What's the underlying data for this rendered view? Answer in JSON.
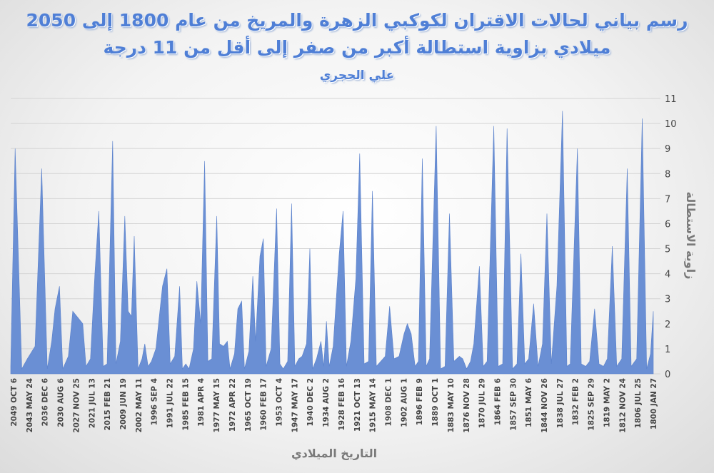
{
  "chart_data": {
    "type": "area",
    "title": "رسم بياني لحالات الاقتران لكوكبي الزهرة والمريخ من عام 1800 إلى 2050",
    "title_line2": "ميلادي بزاوية استطالة أكبر من صفر إلى أقل من 11 درجة",
    "subtitle": "علي الحجري",
    "xlabel": "التاريخ الميلادي",
    "ylabel": "زاوية الاستطالة",
    "ylim": [
      0,
      11
    ],
    "yticks": [
      0,
      1,
      2,
      3,
      4,
      5,
      6,
      7,
      8,
      9,
      10,
      11
    ],
    "grid": true,
    "y_axis_position": "right",
    "color": "#6a8fd4",
    "x_tick_labels": [
      "2049 OCT 6",
      "2043 MAY 24",
      "2036 DEC 6",
      "2030 AUG 6",
      "2027 NOV 25",
      "2021 JUL 13",
      "2015 FEB 21",
      "2009 JUN 19",
      "2002 MAY 11",
      "1996 SEP 4",
      "1991 JUL 22",
      "1985 FEB 15",
      "1981 APR 4",
      "1977 MAY 15",
      "1972 APR 22",
      "1965 OCT 19",
      "1960 FEB 17",
      "1953 OCT 4",
      "1947 MAY 17",
      "1940 DEC 2",
      "1934 AUG 2",
      "1928 FEB 16",
      "1921 OCT 13",
      "1915 MAY 14",
      "1908 DEC 1",
      "1902 AUG 1",
      "1896 FEB 9",
      "1889 OCT 1",
      "1883 MAY 10",
      "1876 NOV 28",
      "1870 JUL 29",
      "1864 FEB 6",
      "1857 SEP 30",
      "1851 MAY 6",
      "1844 NOV 26",
      "1838 JUL 27",
      "1832 FEB 2",
      "1825 SEP 29",
      "1819 MAY 2",
      "1812 NOV 24",
      "1806 JUL 25",
      "1800 JAN 27"
    ],
    "y_profile": [
      [
        0.0,
        0.3
      ],
      [
        0.8,
        9.0
      ],
      [
        2.0,
        0.2
      ],
      [
        3.0,
        0.6
      ],
      [
        4.4,
        1.1
      ],
      [
        5.6,
        8.2
      ],
      [
        6.6,
        0.2
      ],
      [
        7.4,
        1.3
      ],
      [
        8.0,
        2.6
      ],
      [
        8.8,
        3.5
      ],
      [
        9.4,
        0.2
      ],
      [
        10.4,
        0.7
      ],
      [
        11.2,
        2.5
      ],
      [
        12.3,
        2.2
      ],
      [
        13.0,
        2.0
      ],
      [
        13.6,
        0.3
      ],
      [
        14.4,
        0.6
      ],
      [
        15.2,
        4.0
      ],
      [
        15.9,
        6.5
      ],
      [
        16.7,
        0.3
      ],
      [
        17.4,
        0.4
      ],
      [
        18.4,
        9.3
      ],
      [
        19.0,
        0.4
      ],
      [
        19.8,
        1.3
      ],
      [
        20.6,
        6.3
      ],
      [
        21.2,
        2.5
      ],
      [
        21.8,
        2.3
      ],
      [
        22.3,
        5.5
      ],
      [
        23.0,
        0.2
      ],
      [
        23.7,
        0.6
      ],
      [
        24.2,
        1.2
      ],
      [
        24.8,
        0.3
      ],
      [
        25.4,
        0.5
      ],
      [
        26.2,
        1.0
      ],
      [
        27.4,
        3.5
      ],
      [
        28.2,
        4.2
      ],
      [
        28.8,
        0.4
      ],
      [
        29.6,
        0.7
      ],
      [
        30.5,
        3.5
      ],
      [
        31.0,
        0.2
      ],
      [
        31.6,
        0.4
      ],
      [
        32.2,
        0.2
      ],
      [
        33.0,
        1.0
      ],
      [
        33.6,
        3.7
      ],
      [
        34.3,
        2.0
      ],
      [
        35.0,
        8.5
      ],
      [
        35.6,
        0.5
      ],
      [
        36.3,
        0.6
      ],
      [
        37.2,
        6.3
      ],
      [
        37.7,
        1.2
      ],
      [
        38.4,
        1.1
      ],
      [
        39.1,
        1.3
      ],
      [
        39.6,
        0.2
      ],
      [
        40.4,
        0.8
      ],
      [
        41.0,
        2.6
      ],
      [
        41.7,
        2.9
      ],
      [
        42.2,
        0.2
      ],
      [
        43.0,
        0.9
      ],
      [
        43.7,
        3.9
      ],
      [
        44.2,
        1.3
      ],
      [
        45.0,
        4.7
      ],
      [
        45.6,
        5.4
      ],
      [
        46.1,
        0.3
      ],
      [
        47.0,
        1.0
      ],
      [
        48.0,
        6.6
      ],
      [
        48.6,
        0.4
      ],
      [
        49.2,
        0.2
      ],
      [
        50.0,
        0.5
      ],
      [
        50.7,
        6.8
      ],
      [
        51.3,
        0.3
      ],
      [
        52.0,
        0.6
      ],
      [
        52.6,
        0.7
      ],
      [
        53.4,
        1.2
      ],
      [
        54.0,
        5.0
      ],
      [
        54.5,
        0.2
      ],
      [
        55.2,
        0.6
      ],
      [
        56.0,
        1.3
      ],
      [
        56.5,
        0.3
      ],
      [
        57.0,
        2.1
      ],
      [
        57.5,
        0.3
      ],
      [
        58.2,
        1.1
      ],
      [
        59.3,
        4.8
      ],
      [
        60.0,
        6.5
      ],
      [
        60.6,
        0.3
      ],
      [
        61.4,
        1.3
      ],
      [
        62.3,
        3.8
      ],
      [
        63.0,
        8.8
      ],
      [
        63.8,
        0.4
      ],
      [
        64.6,
        0.5
      ],
      [
        65.3,
        7.3
      ],
      [
        66.0,
        0.3
      ],
      [
        66.8,
        0.5
      ],
      [
        67.6,
        0.7
      ],
      [
        68.4,
        2.7
      ],
      [
        69.2,
        0.6
      ],
      [
        70.1,
        0.7
      ],
      [
        71.0,
        1.6
      ],
      [
        71.6,
        2.0
      ],
      [
        72.3,
        1.6
      ],
      [
        73.0,
        0.3
      ],
      [
        73.6,
        0.5
      ],
      [
        74.3,
        8.6
      ],
      [
        75.0,
        0.3
      ],
      [
        75.6,
        0.6
      ],
      [
        76.8,
        9.9
      ],
      [
        77.6,
        0.2
      ],
      [
        78.4,
        0.3
      ],
      [
        79.2,
        6.4
      ],
      [
        80.0,
        0.5
      ],
      [
        81.0,
        0.7
      ],
      [
        81.6,
        0.6
      ],
      [
        82.3,
        0.2
      ],
      [
        83.0,
        0.5
      ],
      [
        83.6,
        1.2
      ],
      [
        84.6,
        4.3
      ],
      [
        85.3,
        0.3
      ],
      [
        86.0,
        0.5
      ],
      [
        87.2,
        9.9
      ],
      [
        88.0,
        0.3
      ],
      [
        88.8,
        0.4
      ],
      [
        89.6,
        9.8
      ],
      [
        90.6,
        0.2
      ],
      [
        91.4,
        0.4
      ],
      [
        92.1,
        4.8
      ],
      [
        92.8,
        0.4
      ],
      [
        93.5,
        0.6
      ],
      [
        94.4,
        2.8
      ],
      [
        95.2,
        0.3
      ],
      [
        96.0,
        1.2
      ],
      [
        96.8,
        6.4
      ],
      [
        97.6,
        0.4
      ],
      [
        98.6,
        3.5
      ],
      [
        99.6,
        10.5
      ],
      [
        100.4,
        0.3
      ],
      [
        101.0,
        0.4
      ],
      [
        102.3,
        9.0
      ],
      [
        103.0,
        0.4
      ],
      [
        103.8,
        0.3
      ],
      [
        104.5,
        0.5
      ],
      [
        105.4,
        2.6
      ],
      [
        106.2,
        0.4
      ],
      [
        107.0,
        0.3
      ],
      [
        107.7,
        0.6
      ],
      [
        108.6,
        5.1
      ],
      [
        109.4,
        0.3
      ],
      [
        110.3,
        0.6
      ],
      [
        111.3,
        8.2
      ],
      [
        112.0,
        0.3
      ],
      [
        113.0,
        0.6
      ],
      [
        114.0,
        10.2
      ],
      [
        114.8,
        0.2
      ],
      [
        115.5,
        0.8
      ],
      [
        116.0,
        2.5
      ]
    ]
  }
}
